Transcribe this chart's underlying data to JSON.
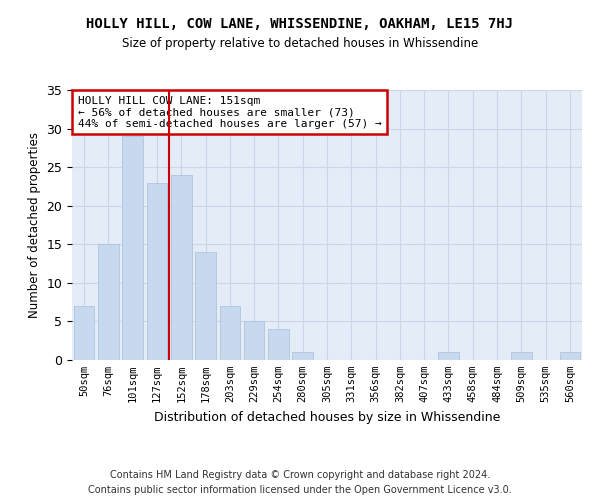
{
  "title1": "HOLLY HILL, COW LANE, WHISSENDINE, OAKHAM, LE15 7HJ",
  "title2": "Size of property relative to detached houses in Whissendine",
  "xlabel": "Distribution of detached houses by size in Whissendine",
  "ylabel": "Number of detached properties",
  "footer1": "Contains HM Land Registry data © Crown copyright and database right 2024.",
  "footer2": "Contains public sector information licensed under the Open Government Licence v3.0.",
  "annotation_title": "HOLLY HILL COW LANE: 151sqm",
  "annotation_line1": "← 56% of detached houses are smaller (73)",
  "annotation_line2": "44% of semi-detached houses are larger (57) →",
  "bar_categories": [
    "50sqm",
    "76sqm",
    "101sqm",
    "127sqm",
    "152sqm",
    "178sqm",
    "203sqm",
    "229sqm",
    "254sqm",
    "280sqm",
    "305sqm",
    "331sqm",
    "356sqm",
    "382sqm",
    "407sqm",
    "433sqm",
    "458sqm",
    "484sqm",
    "509sqm",
    "535sqm",
    "560sqm"
  ],
  "bar_values": [
    7,
    15,
    29,
    23,
    24,
    14,
    7,
    5,
    4,
    1,
    0,
    0,
    0,
    0,
    0,
    1,
    0,
    0,
    1,
    0,
    1
  ],
  "bar_color": "#c8d8ee",
  "bar_edge_color": "#a8c0da",
  "vline_x": 3.5,
  "vline_color": "#cc0000",
  "annotation_box_color": "#cc0000",
  "grid_color": "#cdd6e8",
  "bg_color": "#e4ecf8",
  "ylim": [
    0,
    35
  ],
  "yticks": [
    0,
    5,
    10,
    15,
    20,
    25,
    30,
    35
  ]
}
